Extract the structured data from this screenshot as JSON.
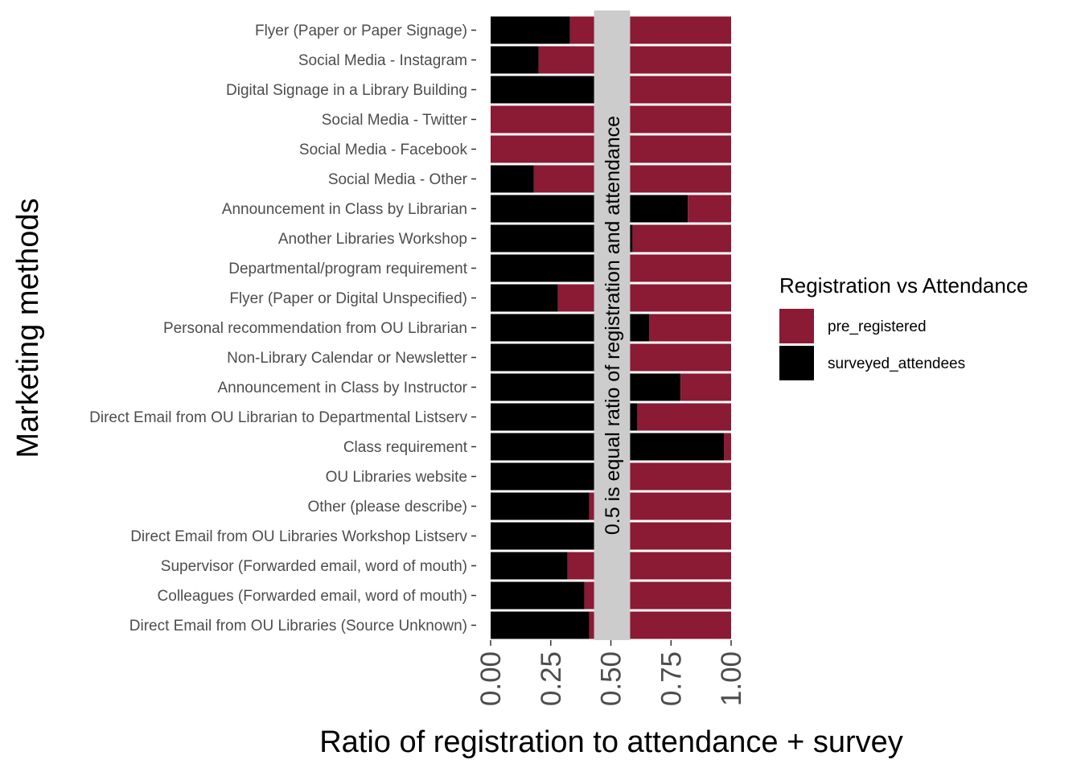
{
  "chart_data": {
    "type": "bar",
    "stacked": true,
    "orientation": "horizontal",
    "title": "",
    "xlabel": "Ratio of registration to attendance + survey",
    "ylabel": "Marketing methods",
    "xlim": [
      0,
      1
    ],
    "x_ticks": [
      "0.00",
      "0.25",
      "0.50",
      "0.75",
      "1.00"
    ],
    "x_tick_values": [
      0,
      0.25,
      0.5,
      0.75,
      1.0
    ],
    "annotation": {
      "text": "0.5 is equal ratio of registration and attendance",
      "x_center": 0.5,
      "x_range": [
        0.43,
        0.58
      ],
      "color": "#CCCCCC"
    },
    "legend": {
      "title": "Registration vs Attendance",
      "position": "right",
      "entries": [
        {
          "label": "pre_registered",
          "color": "#8B1A34"
        },
        {
          "label": "surveyed_attendees",
          "color": "#000000"
        }
      ]
    },
    "categories": [
      "Flyer (Paper or Paper Signage)",
      "Social Media - Instagram",
      "Digital Signage in a Library Building",
      "Social Media - Twitter",
      "Social Media - Facebook",
      "Social Media - Other",
      "Announcement in Class by Librarian",
      "Another Libraries Workshop",
      "Departmental/program requirement",
      "Flyer (Paper or Digital Unspecified)",
      "Personal recommendation from OU Librarian",
      "Non-Library Calendar or Newsletter",
      "Announcement in Class by Instructor",
      "Direct Email from OU Librarian to Departmental Listserv",
      "Class requirement",
      "OU Libraries website",
      "Other (please describe)",
      "Direct Email from OU Libraries Workshop Listserv",
      "Supervisor (Forwarded email, word of mouth)",
      "Colleagues (Forwarded email, word of mouth)",
      "Direct Email from OU Libraries (Source Unknown)"
    ],
    "series": [
      {
        "name": "surveyed_attendees",
        "color": "#000000",
        "values": [
          0.33,
          0.2,
          0.5,
          0.0,
          0.0,
          0.18,
          0.82,
          0.59,
          0.5,
          0.28,
          0.66,
          0.5,
          0.79,
          0.61,
          0.97,
          0.5,
          0.41,
          0.43,
          0.32,
          0.39,
          0.41
        ]
      },
      {
        "name": "pre_registered",
        "color": "#8B1A34",
        "values": [
          0.67,
          0.8,
          0.5,
          1.0,
          1.0,
          0.82,
          0.18,
          0.41,
          0.5,
          0.72,
          0.34,
          0.5,
          0.21,
          0.39,
          0.03,
          0.5,
          0.59,
          0.57,
          0.68,
          0.61,
          0.59
        ]
      }
    ]
  }
}
